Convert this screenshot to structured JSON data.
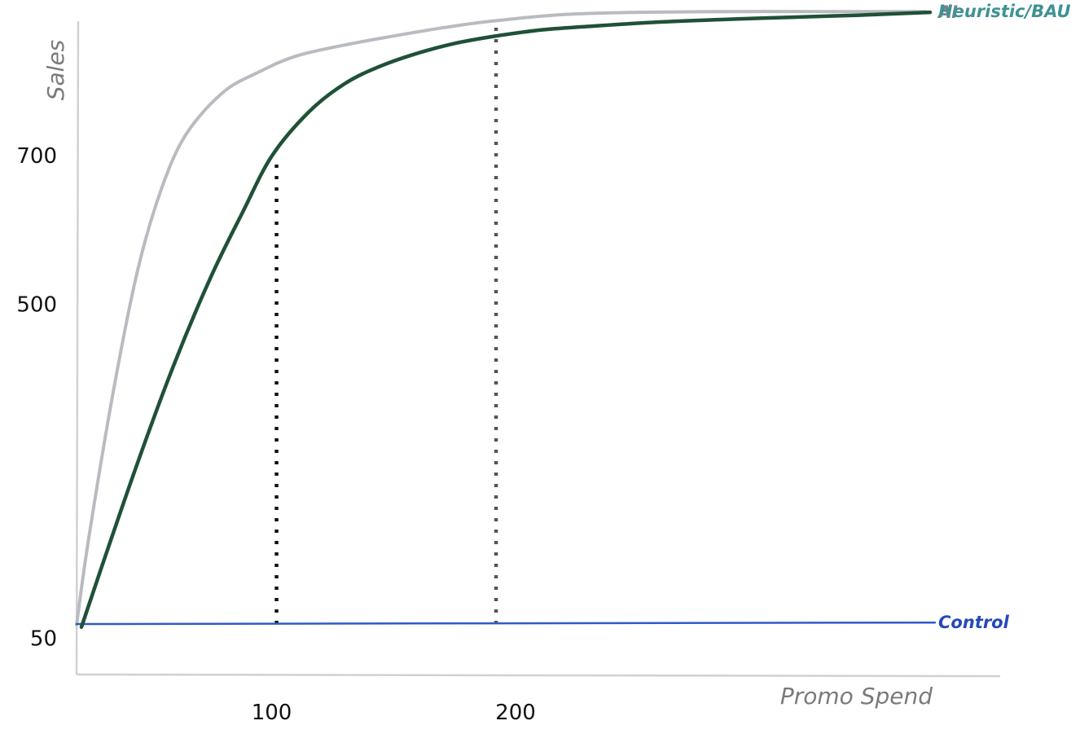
{
  "chart_data": {
    "type": "line",
    "xlabel": "Promo Spend",
    "ylabel": "Sales",
    "x_ticks": [
      {
        "value": 100,
        "label": "100"
      },
      {
        "value": 200,
        "label": "200"
      }
    ],
    "y_ticks": [
      {
        "value": 50,
        "label": "50"
      },
      {
        "value": 500,
        "label": "500"
      },
      {
        "value": 700,
        "label": "700"
      }
    ],
    "xlim": [
      20,
      372
    ],
    "ylim": [
      0,
      880
    ],
    "series": [
      {
        "name": "AI",
        "color": "#1f5136",
        "label_color": "#7a828c",
        "x": [
          22,
          30,
          45,
          60,
          75,
          88,
          100,
          115,
          130,
          145,
          160,
          175,
          190,
          210,
          230,
          260,
          300,
          340,
          370
        ],
        "y": [
          64,
          142,
          285,
          418,
          535,
          622,
          698,
          757,
          796,
          820,
          837,
          850,
          859,
          868,
          873,
          879,
          884,
          888,
          892
        ]
      },
      {
        "name": "Heuristic/BAU",
        "color": "#b8bbbf",
        "label_color": "#3f9294",
        "x": [
          20,
          25,
          35,
          45,
          55,
          65,
          80,
          95,
          110,
          130,
          150,
          170,
          190,
          220,
          250,
          290,
          330,
          368
        ],
        "y": [
          67,
          184,
          380,
          544,
          656,
          728,
          784,
          812,
          833,
          848,
          860,
          871,
          880,
          889,
          892,
          893,
          893,
          893
        ]
      },
      {
        "name": "Control",
        "color": "#2f5bc8",
        "label_color": "#2549b8",
        "x": [
          20,
          372
        ],
        "y": [
          68,
          70
        ]
      }
    ],
    "reference_lines": [
      {
        "x": 102,
        "y_from": 68,
        "y_to": 690,
        "color": "#111111"
      },
      {
        "x": 192,
        "y_from": 68,
        "y_to": 876,
        "color": "#555555"
      }
    ],
    "grid": false,
    "legend": "labels at right end of each series"
  }
}
